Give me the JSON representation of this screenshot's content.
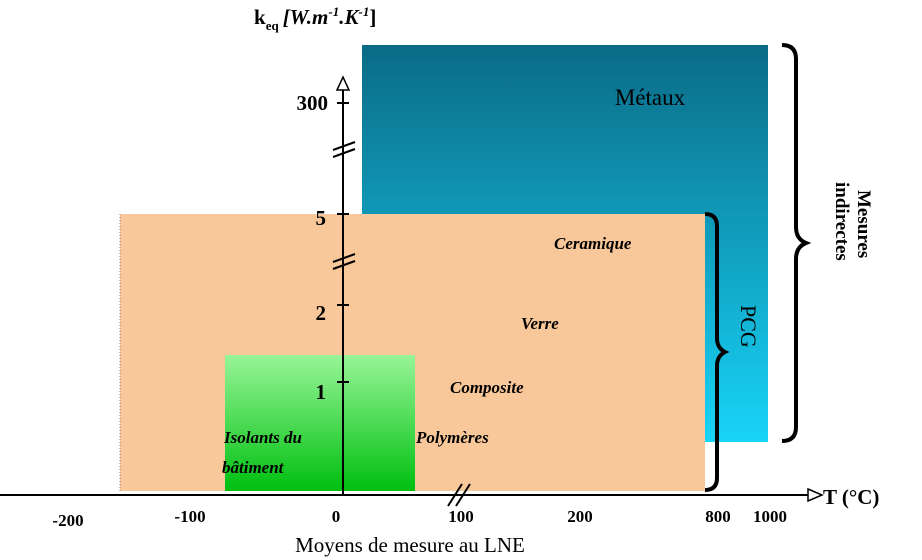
{
  "y_axis": {
    "title": {
      "symbol": "k",
      "subscript": "eq",
      "unit_a": "[W.m",
      "exp_a": "-1",
      "unit_b": ".K",
      "exp_b": "-1",
      "close": "]"
    },
    "ticks": [
      "300",
      "5",
      "2",
      "1"
    ]
  },
  "x_axis": {
    "title": "T (°C)",
    "ticks": [
      "-200",
      "-100",
      "0",
      "100",
      "200",
      "800",
      "1000"
    ]
  },
  "regions": {
    "metals": "Métaux",
    "ceramic": "Ceramique",
    "glass": "Verre",
    "composite": "Composite",
    "polymers": "Polymères",
    "insulation": [
      "Isolants du",
      "bâtiment"
    ],
    "pcg": "PCG"
  },
  "brace_label": [
    "Mesures",
    "indirectes"
  ],
  "caption": "Moyens de mesure au LNE"
}
